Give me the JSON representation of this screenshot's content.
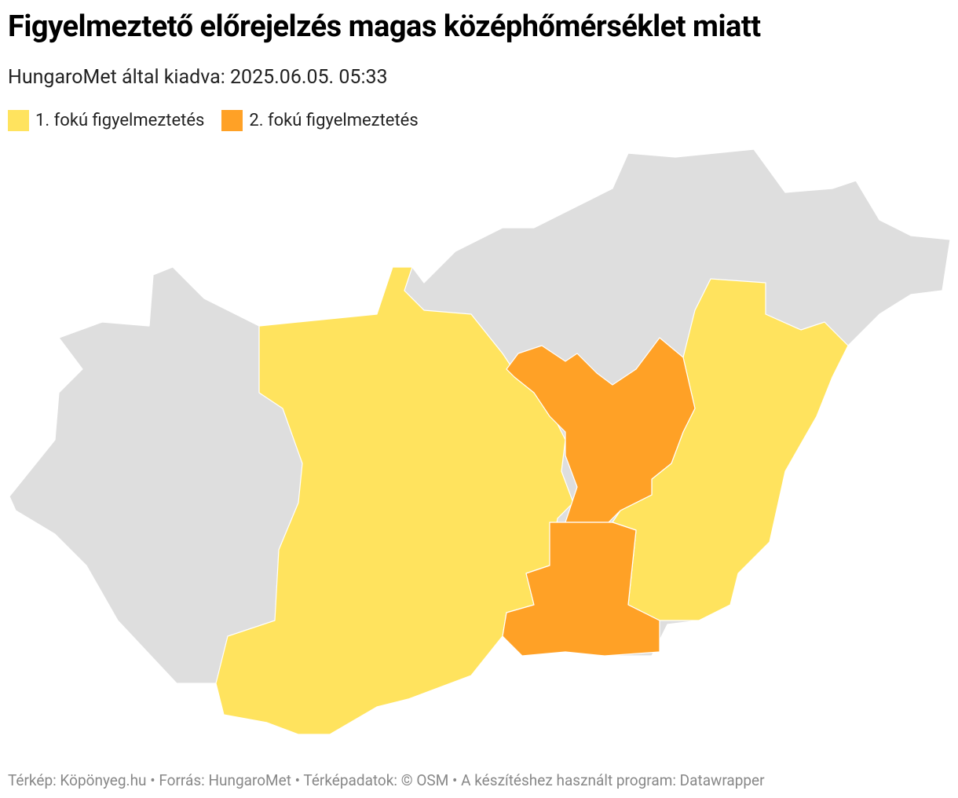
{
  "header": {
    "title": "Figyelmeztető előrejelzés magas középhőmérséklet miatt",
    "subtitle": "HungaroMet által kiadva: 2025.06.05. 05:33"
  },
  "legend": [
    {
      "label": "1. fokú figyelmeztetés",
      "color": "#ffe35e"
    },
    {
      "label": "2. fokú figyelmeztetés",
      "color": "#ffa126"
    }
  ],
  "footer": "Térkép: Köpönyeg.hu • Forrás: HungaroMet • Térképadatok: © OSM  • A készítéshez használt program: Datawrapper"
}
